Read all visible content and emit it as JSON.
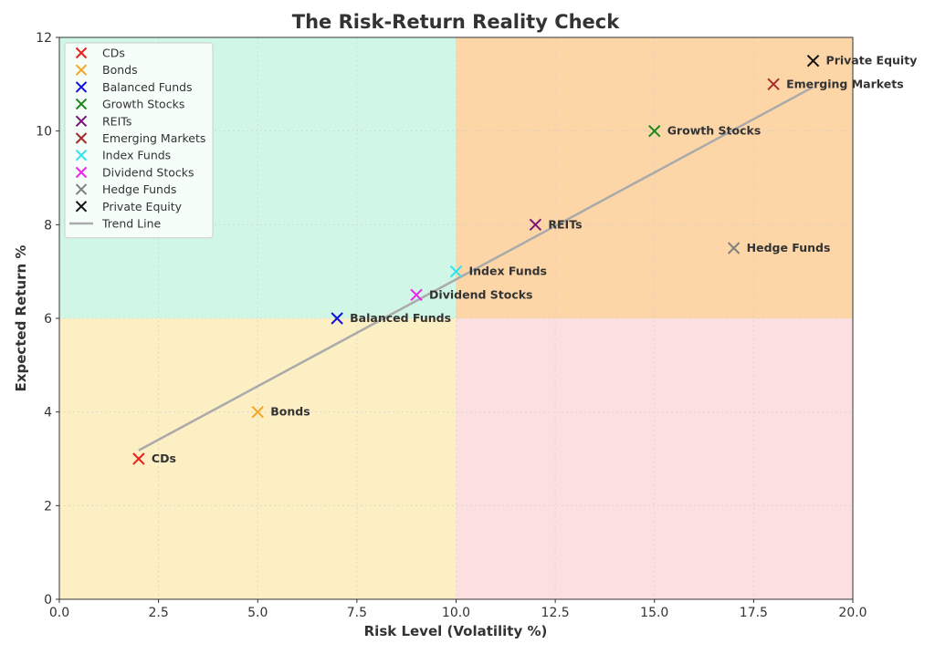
{
  "chart_data": {
    "type": "scatter",
    "title": "The Risk-Return Reality Check",
    "xlabel": "Risk Level (Volatility %)",
    "ylabel": "Expected Return %",
    "xlim": [
      0,
      20
    ],
    "ylim": [
      0,
      12
    ],
    "xticks": [
      "0.0",
      "2.5",
      "5.0",
      "7.5",
      "10.0",
      "12.5",
      "15.0",
      "17.5",
      "20.0"
    ],
    "yticks": [
      "0",
      "2",
      "4",
      "6",
      "8",
      "10",
      "12"
    ],
    "grid": true,
    "legend_position": "top-left",
    "quadrants": [
      {
        "x": [
          0,
          10
        ],
        "y": [
          6,
          12
        ],
        "color": "#d0f7e6"
      },
      {
        "x": [
          10,
          20
        ],
        "y": [
          6,
          12
        ],
        "color": "#fdd6a8"
      },
      {
        "x": [
          0,
          10
        ],
        "y": [
          0,
          6
        ],
        "color": "#fcefc4"
      },
      {
        "x": [
          10,
          20
        ],
        "y": [
          0,
          6
        ],
        "color": "#fcdfe0"
      }
    ],
    "series": [
      {
        "name": "CDs",
        "x": 2,
        "y": 3,
        "color": "#e8231e"
      },
      {
        "name": "Bonds",
        "x": 5,
        "y": 4,
        "color": "#f5a623"
      },
      {
        "name": "Balanced Funds",
        "x": 7,
        "y": 6,
        "color": "#1010e0"
      },
      {
        "name": "Growth Stocks",
        "x": 15,
        "y": 10,
        "color": "#1a8a1a"
      },
      {
        "name": "REITs",
        "x": 12,
        "y": 8,
        "color": "#7a147a"
      },
      {
        "name": "Emerging Markets",
        "x": 18,
        "y": 11,
        "color": "#a52a2a"
      },
      {
        "name": "Index Funds",
        "x": 10,
        "y": 7,
        "color": "#33e0ee"
      },
      {
        "name": "Dividend Stocks",
        "x": 9,
        "y": 6.5,
        "color": "#f01ff0"
      },
      {
        "name": "Hedge Funds",
        "x": 17,
        "y": 7.5,
        "color": "#808080"
      },
      {
        "name": "Private Equity",
        "x": 19,
        "y": 11.5,
        "color": "#111111"
      }
    ],
    "trend_line": {
      "name": "Trend Line",
      "x": [
        2,
        19
      ],
      "y": [
        3.18,
        10.94
      ],
      "color": "#aaaaaa"
    }
  }
}
